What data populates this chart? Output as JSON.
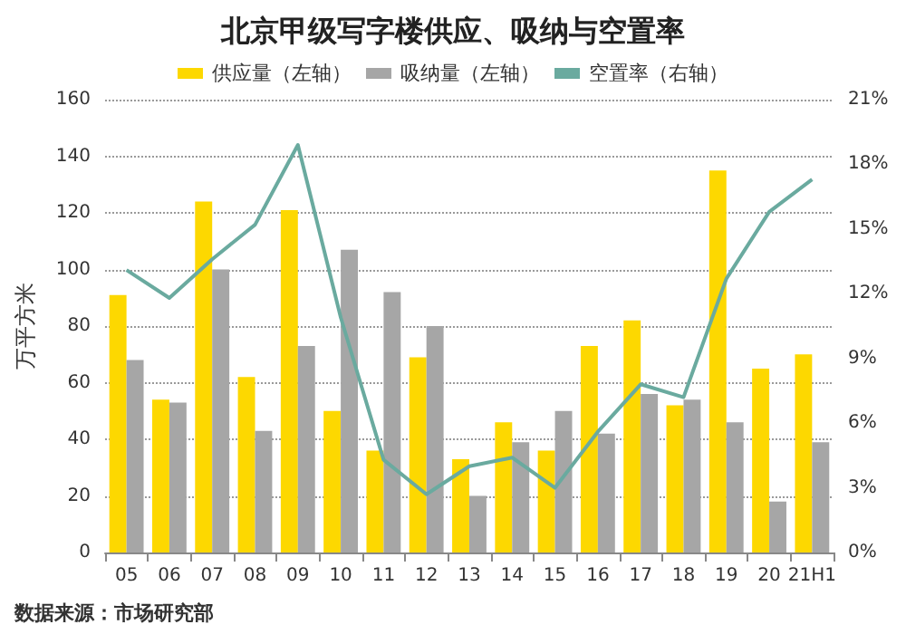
{
  "chart_data": {
    "type": "bar",
    "title": "北京甲级写字楼供应、吸纳与空置率",
    "ylabel": "万平方米",
    "categories": [
      "05",
      "06",
      "07",
      "08",
      "09",
      "10",
      "11",
      "12",
      "13",
      "14",
      "15",
      "16",
      "17",
      "18",
      "19",
      "20",
      "21H1"
    ],
    "series": [
      {
        "name": "供应量（左轴）",
        "color": "#fdd800",
        "values": [
          91,
          54,
          124,
          62,
          121,
          50,
          36,
          69,
          33,
          46,
          36,
          73,
          82,
          52,
          135,
          65,
          70
        ]
      },
      {
        "name": "吸纳量（左轴）",
        "color": "#a6a6a6",
        "values": [
          68,
          53,
          100,
          43,
          73,
          107,
          92,
          80,
          20,
          39,
          50,
          42,
          56,
          54,
          46,
          18,
          39
        ]
      },
      {
        "name": "空置率（右轴）",
        "type": "line",
        "axis": "y2",
        "color": "#6aaa9f",
        "values": [
          13.1,
          11.8,
          13.6,
          15.2,
          18.9,
          10.9,
          4.3,
          2.7,
          4.0,
          4.4,
          3.0,
          5.6,
          7.8,
          7.2,
          12.7,
          15.8,
          17.3
        ]
      }
    ],
    "ylim": [
      0,
      160
    ],
    "yticks": [
      0,
      20,
      40,
      60,
      80,
      100,
      120,
      140,
      160
    ],
    "y2lim": [
      0,
      21
    ],
    "y2ticks": [
      {
        "value": 0,
        "label": "0%"
      },
      {
        "value": 3,
        "label": "3%"
      },
      {
        "value": 6,
        "label": "6%"
      },
      {
        "value": 9,
        "label": "9%"
      },
      {
        "value": 12,
        "label": "12%"
      },
      {
        "value": 15,
        "label": "15%"
      },
      {
        "value": 18,
        "label": "18%"
      },
      {
        "value": 21,
        "label": "21%"
      }
    ],
    "grid": "y",
    "legend": "top",
    "marker": "none",
    "line_style": "solid",
    "annotations": [
      "数据来源：市场研究部"
    ]
  }
}
